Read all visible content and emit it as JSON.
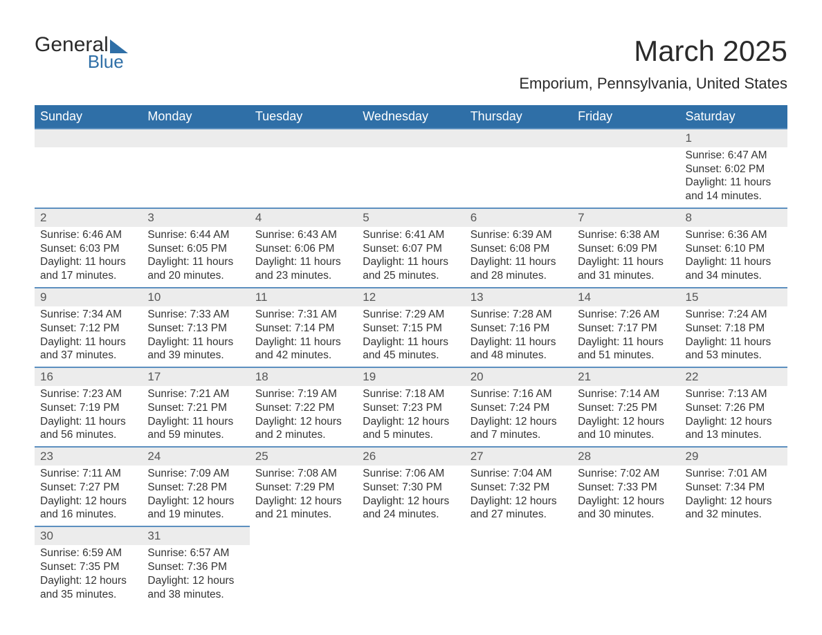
{
  "logo": {
    "word1": "General",
    "word2": "Blue"
  },
  "title": "March 2025",
  "location": "Emporium, Pennsylvania, United States",
  "headers": [
    "Sunday",
    "Monday",
    "Tuesday",
    "Wednesday",
    "Thursday",
    "Friday",
    "Saturday"
  ],
  "colors": {
    "header_bg": "#2f6fa7",
    "header_text": "#ffffff",
    "row_border": "#5c8fbf",
    "daynum_bg": "#ececec",
    "body_text": "#333333",
    "logo_blue": "#2f6fa7"
  },
  "font": {
    "title_size_pt": 32,
    "location_size_pt": 17,
    "header_size_pt": 14,
    "cell_size_pt": 12
  },
  "weeks": [
    [
      {
        "n": "",
        "sr": "",
        "ss": "",
        "d1": "",
        "d2": ""
      },
      {
        "n": "",
        "sr": "",
        "ss": "",
        "d1": "",
        "d2": ""
      },
      {
        "n": "",
        "sr": "",
        "ss": "",
        "d1": "",
        "d2": ""
      },
      {
        "n": "",
        "sr": "",
        "ss": "",
        "d1": "",
        "d2": ""
      },
      {
        "n": "",
        "sr": "",
        "ss": "",
        "d1": "",
        "d2": ""
      },
      {
        "n": "",
        "sr": "",
        "ss": "",
        "d1": "",
        "d2": ""
      },
      {
        "n": "1",
        "sr": "Sunrise: 6:47 AM",
        "ss": "Sunset: 6:02 PM",
        "d1": "Daylight: 11 hours",
        "d2": "and 14 minutes."
      }
    ],
    [
      {
        "n": "2",
        "sr": "Sunrise: 6:46 AM",
        "ss": "Sunset: 6:03 PM",
        "d1": "Daylight: 11 hours",
        "d2": "and 17 minutes."
      },
      {
        "n": "3",
        "sr": "Sunrise: 6:44 AM",
        "ss": "Sunset: 6:05 PM",
        "d1": "Daylight: 11 hours",
        "d2": "and 20 minutes."
      },
      {
        "n": "4",
        "sr": "Sunrise: 6:43 AM",
        "ss": "Sunset: 6:06 PM",
        "d1": "Daylight: 11 hours",
        "d2": "and 23 minutes."
      },
      {
        "n": "5",
        "sr": "Sunrise: 6:41 AM",
        "ss": "Sunset: 6:07 PM",
        "d1": "Daylight: 11 hours",
        "d2": "and 25 minutes."
      },
      {
        "n": "6",
        "sr": "Sunrise: 6:39 AM",
        "ss": "Sunset: 6:08 PM",
        "d1": "Daylight: 11 hours",
        "d2": "and 28 minutes."
      },
      {
        "n": "7",
        "sr": "Sunrise: 6:38 AM",
        "ss": "Sunset: 6:09 PM",
        "d1": "Daylight: 11 hours",
        "d2": "and 31 minutes."
      },
      {
        "n": "8",
        "sr": "Sunrise: 6:36 AM",
        "ss": "Sunset: 6:10 PM",
        "d1": "Daylight: 11 hours",
        "d2": "and 34 minutes."
      }
    ],
    [
      {
        "n": "9",
        "sr": "Sunrise: 7:34 AM",
        "ss": "Sunset: 7:12 PM",
        "d1": "Daylight: 11 hours",
        "d2": "and 37 minutes."
      },
      {
        "n": "10",
        "sr": "Sunrise: 7:33 AM",
        "ss": "Sunset: 7:13 PM",
        "d1": "Daylight: 11 hours",
        "d2": "and 39 minutes."
      },
      {
        "n": "11",
        "sr": "Sunrise: 7:31 AM",
        "ss": "Sunset: 7:14 PM",
        "d1": "Daylight: 11 hours",
        "d2": "and 42 minutes."
      },
      {
        "n": "12",
        "sr": "Sunrise: 7:29 AM",
        "ss": "Sunset: 7:15 PM",
        "d1": "Daylight: 11 hours",
        "d2": "and 45 minutes."
      },
      {
        "n": "13",
        "sr": "Sunrise: 7:28 AM",
        "ss": "Sunset: 7:16 PM",
        "d1": "Daylight: 11 hours",
        "d2": "and 48 minutes."
      },
      {
        "n": "14",
        "sr": "Sunrise: 7:26 AM",
        "ss": "Sunset: 7:17 PM",
        "d1": "Daylight: 11 hours",
        "d2": "and 51 minutes."
      },
      {
        "n": "15",
        "sr": "Sunrise: 7:24 AM",
        "ss": "Sunset: 7:18 PM",
        "d1": "Daylight: 11 hours",
        "d2": "and 53 minutes."
      }
    ],
    [
      {
        "n": "16",
        "sr": "Sunrise: 7:23 AM",
        "ss": "Sunset: 7:19 PM",
        "d1": "Daylight: 11 hours",
        "d2": "and 56 minutes."
      },
      {
        "n": "17",
        "sr": "Sunrise: 7:21 AM",
        "ss": "Sunset: 7:21 PM",
        "d1": "Daylight: 11 hours",
        "d2": "and 59 minutes."
      },
      {
        "n": "18",
        "sr": "Sunrise: 7:19 AM",
        "ss": "Sunset: 7:22 PM",
        "d1": "Daylight: 12 hours",
        "d2": "and 2 minutes."
      },
      {
        "n": "19",
        "sr": "Sunrise: 7:18 AM",
        "ss": "Sunset: 7:23 PM",
        "d1": "Daylight: 12 hours",
        "d2": "and 5 minutes."
      },
      {
        "n": "20",
        "sr": "Sunrise: 7:16 AM",
        "ss": "Sunset: 7:24 PM",
        "d1": "Daylight: 12 hours",
        "d2": "and 7 minutes."
      },
      {
        "n": "21",
        "sr": "Sunrise: 7:14 AM",
        "ss": "Sunset: 7:25 PM",
        "d1": "Daylight: 12 hours",
        "d2": "and 10 minutes."
      },
      {
        "n": "22",
        "sr": "Sunrise: 7:13 AM",
        "ss": "Sunset: 7:26 PM",
        "d1": "Daylight: 12 hours",
        "d2": "and 13 minutes."
      }
    ],
    [
      {
        "n": "23",
        "sr": "Sunrise: 7:11 AM",
        "ss": "Sunset: 7:27 PM",
        "d1": "Daylight: 12 hours",
        "d2": "and 16 minutes."
      },
      {
        "n": "24",
        "sr": "Sunrise: 7:09 AM",
        "ss": "Sunset: 7:28 PM",
        "d1": "Daylight: 12 hours",
        "d2": "and 19 minutes."
      },
      {
        "n": "25",
        "sr": "Sunrise: 7:08 AM",
        "ss": "Sunset: 7:29 PM",
        "d1": "Daylight: 12 hours",
        "d2": "and 21 minutes."
      },
      {
        "n": "26",
        "sr": "Sunrise: 7:06 AM",
        "ss": "Sunset: 7:30 PM",
        "d1": "Daylight: 12 hours",
        "d2": "and 24 minutes."
      },
      {
        "n": "27",
        "sr": "Sunrise: 7:04 AM",
        "ss": "Sunset: 7:32 PM",
        "d1": "Daylight: 12 hours",
        "d2": "and 27 minutes."
      },
      {
        "n": "28",
        "sr": "Sunrise: 7:02 AM",
        "ss": "Sunset: 7:33 PM",
        "d1": "Daylight: 12 hours",
        "d2": "and 30 minutes."
      },
      {
        "n": "29",
        "sr": "Sunrise: 7:01 AM",
        "ss": "Sunset: 7:34 PM",
        "d1": "Daylight: 12 hours",
        "d2": "and 32 minutes."
      }
    ],
    [
      {
        "n": "30",
        "sr": "Sunrise: 6:59 AM",
        "ss": "Sunset: 7:35 PM",
        "d1": "Daylight: 12 hours",
        "d2": "and 35 minutes."
      },
      {
        "n": "31",
        "sr": "Sunrise: 6:57 AM",
        "ss": "Sunset: 7:36 PM",
        "d1": "Daylight: 12 hours",
        "d2": "and 38 minutes."
      },
      {
        "n": "",
        "sr": "",
        "ss": "",
        "d1": "",
        "d2": ""
      },
      {
        "n": "",
        "sr": "",
        "ss": "",
        "d1": "",
        "d2": ""
      },
      {
        "n": "",
        "sr": "",
        "ss": "",
        "d1": "",
        "d2": ""
      },
      {
        "n": "",
        "sr": "",
        "ss": "",
        "d1": "",
        "d2": ""
      },
      {
        "n": "",
        "sr": "",
        "ss": "",
        "d1": "",
        "d2": ""
      }
    ]
  ]
}
